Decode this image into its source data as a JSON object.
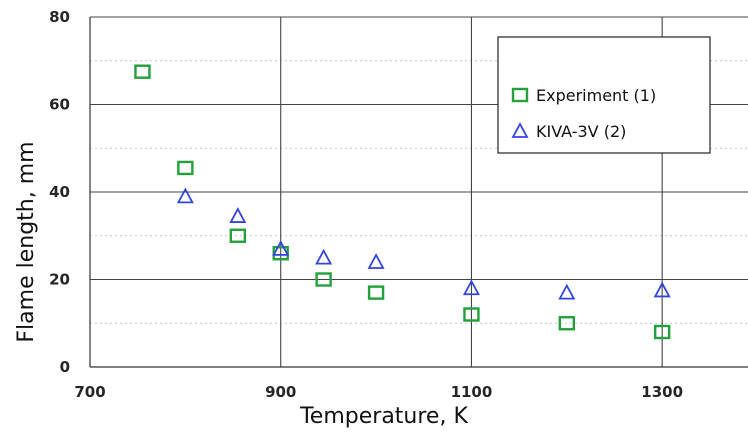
{
  "chart_data": {
    "type": "scatter",
    "title": "",
    "xlabel": "Temperature, K",
    "ylabel": "Flame length, mm",
    "xlim": [
      700,
      1390
    ],
    "ylim": [
      0,
      80
    ],
    "xticks": [
      700,
      900,
      1100,
      1300
    ],
    "yticks": [
      0,
      20,
      40,
      60,
      80
    ],
    "grid": true,
    "legend_position": "top-right",
    "series": [
      {
        "name": "Experiment (1)",
        "marker": "square",
        "color": "#23a03c",
        "points": [
          {
            "x": 755,
            "y": 67.5
          },
          {
            "x": 800,
            "y": 45.5
          },
          {
            "x": 855,
            "y": 30
          },
          {
            "x": 900,
            "y": 26
          },
          {
            "x": 945,
            "y": 20
          },
          {
            "x": 1000,
            "y": 17
          },
          {
            "x": 1100,
            "y": 12
          },
          {
            "x": 1200,
            "y": 10
          },
          {
            "x": 1300,
            "y": 8
          }
        ]
      },
      {
        "name": "KIVA-3V (2)",
        "marker": "triangle",
        "color": "#3344dd",
        "points": [
          {
            "x": 800,
            "y": 39
          },
          {
            "x": 855,
            "y": 34.5
          },
          {
            "x": 900,
            "y": 27
          },
          {
            "x": 945,
            "y": 25
          },
          {
            "x": 1000,
            "y": 24
          },
          {
            "x": 1100,
            "y": 18
          },
          {
            "x": 1200,
            "y": 17
          },
          {
            "x": 1300,
            "y": 17.5
          }
        ]
      }
    ]
  }
}
